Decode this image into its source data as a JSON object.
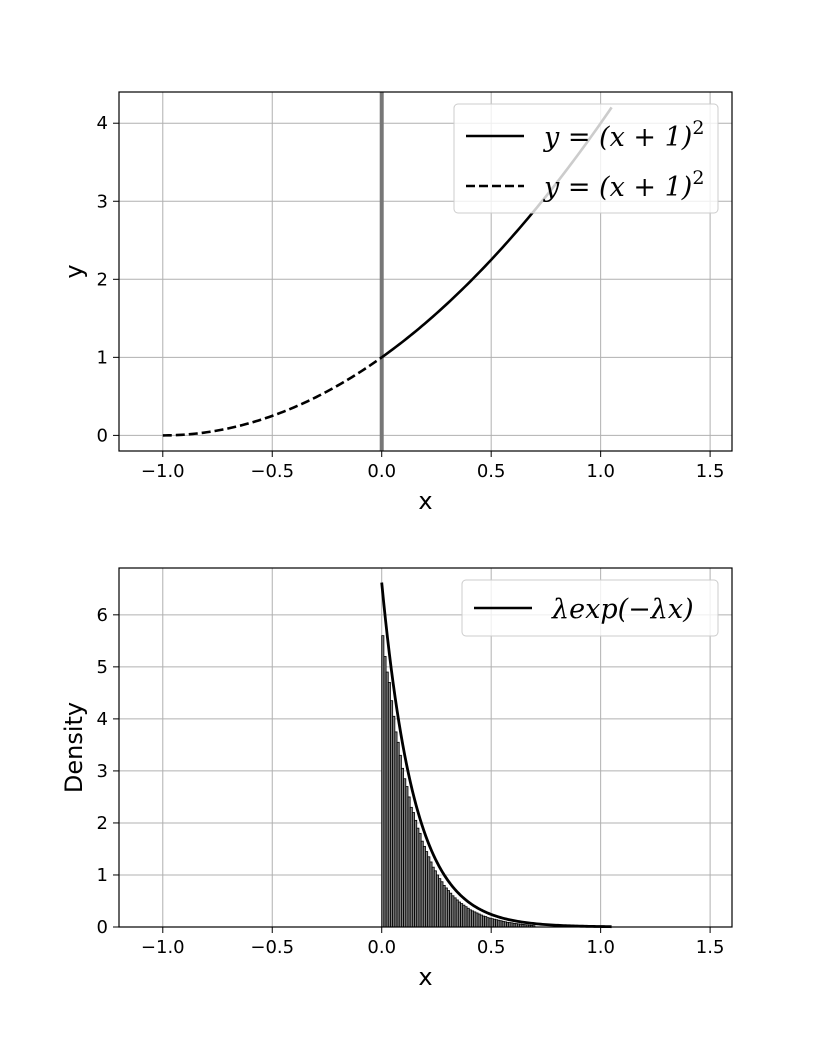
{
  "chart_data": [
    {
      "type": "line",
      "xlabel": "x",
      "ylabel": "y",
      "xlim": [
        -1.2,
        1.6
      ],
      "ylim": [
        -0.2,
        4.4
      ],
      "xticks": [
        -1.0,
        -0.5,
        0.0,
        0.5,
        1.0,
        1.5
      ],
      "xtick_labels": [
        "−1.0",
        "−0.5",
        "0.0",
        "0.5",
        "1.0",
        "1.5"
      ],
      "yticks": [
        0,
        1,
        2,
        3,
        4
      ],
      "ytick_labels": [
        "0",
        "1",
        "2",
        "3",
        "4"
      ],
      "grid": true,
      "legend_position": "top-right",
      "vertical_line": {
        "x": 0.0,
        "color": "#777777"
      },
      "series": [
        {
          "name": "y = (x + 1)²",
          "style": "solid",
          "color": "#000000",
          "x_range": [
            0.0,
            1.05
          ],
          "function": "(x+1)^2",
          "x": [
            0.0,
            0.25,
            0.5,
            0.75,
            1.0,
            1.05
          ],
          "y": [
            1.0,
            1.5625,
            2.25,
            3.0625,
            4.0,
            4.2025
          ]
        },
        {
          "name": "y = (x + 1)²",
          "style": "dashed",
          "color": "#000000",
          "x_range": [
            -1.0,
            0.0
          ],
          "function": "(x+1)^2",
          "x": [
            -1.0,
            -0.75,
            -0.5,
            -0.25,
            0.0
          ],
          "y": [
            0.0,
            0.0625,
            0.25,
            0.5625,
            1.0
          ]
        }
      ],
      "legend": [
        {
          "label_main": "y = (x + 1)",
          "label_sup": "2",
          "style": "solid"
        },
        {
          "label_main": "y = (x + 1)",
          "label_sup": "2",
          "style": "dashed"
        }
      ]
    },
    {
      "type": "bar",
      "subtype": "histogram_with_density_line",
      "xlabel": "x",
      "ylabel": "Density",
      "xlim": [
        -1.2,
        1.6
      ],
      "ylim": [
        0,
        6.9
      ],
      "xticks": [
        -1.0,
        -0.5,
        0.0,
        0.5,
        1.0,
        1.5
      ],
      "xtick_labels": [
        "−1.0",
        "−0.5",
        "0.0",
        "0.5",
        "1.0",
        "1.5"
      ],
      "yticks": [
        0,
        1,
        2,
        3,
        4,
        5,
        6
      ],
      "ytick_labels": [
        "0",
        "1",
        "2",
        "3",
        "4",
        "5",
        "6"
      ],
      "grid": true,
      "legend_position": "top-right",
      "bar_color": "#808080",
      "bin_width": 0.01,
      "bins_start": 0.0,
      "densities": [
        5.6,
        5.2,
        4.9,
        4.7,
        4.35,
        4.05,
        3.75,
        3.55,
        3.3,
        3.05,
        2.85,
        2.7,
        2.5,
        2.3,
        2.2,
        2.05,
        1.9,
        1.8,
        1.65,
        1.55,
        1.45,
        1.35,
        1.25,
        1.15,
        1.08,
        1.0,
        0.93,
        0.87,
        0.8,
        0.75,
        0.7,
        0.65,
        0.6,
        0.56,
        0.52,
        0.48,
        0.45,
        0.42,
        0.39,
        0.36,
        0.33,
        0.31,
        0.29,
        0.27,
        0.25,
        0.23,
        0.21,
        0.2,
        0.18,
        0.17,
        0.16,
        0.15,
        0.14,
        0.13,
        0.12,
        0.11,
        0.1,
        0.09,
        0.085,
        0.08,
        0.07,
        0.065,
        0.06,
        0.055,
        0.05,
        0.045,
        0.04,
        0.035,
        0.03,
        0.025
      ],
      "density_line": {
        "name": "λexp(−λx)",
        "lambda": 6.62,
        "x_range": [
          0.0,
          1.05
        ],
        "color": "#000000",
        "x": [
          0.0,
          0.1,
          0.2,
          0.3,
          0.5,
          0.75,
          1.05
        ],
        "y": [
          6.62,
          3.4,
          1.75,
          0.9,
          0.24,
          0.046,
          0.006
        ]
      },
      "legend": [
        {
          "label": "λexp(−λx)",
          "style": "solid"
        }
      ]
    }
  ]
}
